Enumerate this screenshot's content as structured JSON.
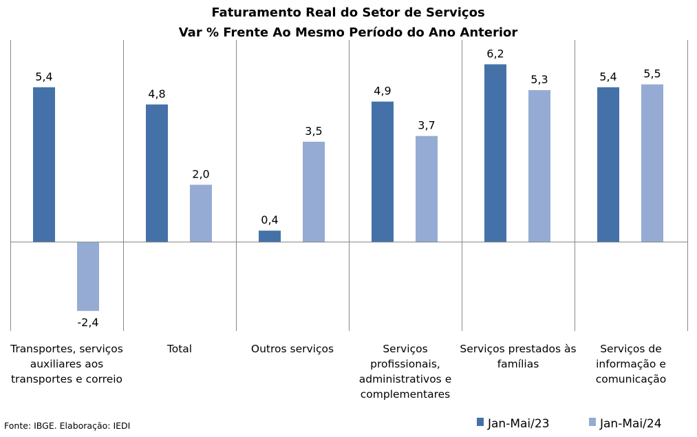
{
  "chart_data": {
    "type": "bar",
    "title": "Faturamento Real do Setor de Serviços",
    "subtitle": "Var % Frente Ao Mesmo Período do Ano Anterior",
    "categories": [
      "Transportes, serviços auxiliares aos transportes e correio",
      "Total",
      "Outros serviços",
      "Serviços profissionais, administrativos e complementares",
      "Serviços prestados às famílias",
      "Serviços de informação e comunicação"
    ],
    "category_lines": [
      [
        "Transportes, serviços",
        "auxiliares aos",
        "transportes e correio"
      ],
      [
        "Total"
      ],
      [
        "Outros serviços"
      ],
      [
        "Serviços",
        "profissionais,",
        "administrativos e",
        "complementares"
      ],
      [
        "Serviços prestados às",
        "famílias"
      ],
      [
        "Serviços de",
        "informação e",
        "comunicação"
      ]
    ],
    "series": [
      {
        "name": "Jan-Mai/23",
        "color": "#4472a8",
        "values": [
          5.4,
          4.8,
          0.4,
          4.9,
          6.2,
          5.4
        ],
        "labels": [
          "5,4",
          "4,8",
          "0,4",
          "4,9",
          "6,2",
          "5,4"
        ]
      },
      {
        "name": "Jan-Mai/24",
        "color": "#95abd4",
        "values": [
          -2.4,
          2.0,
          3.5,
          3.7,
          5.3,
          5.5
        ],
        "labels": [
          "-2,4",
          "2,0",
          "3,5",
          "3,7",
          "5,3",
          "5,5"
        ]
      }
    ],
    "ylim": [
      -3.1,
      7.05
    ],
    "xlabel": "",
    "ylabel": "",
    "legend": "bottom-right",
    "grid": false
  },
  "source_note": "Fonte: IBGE. Elaboração: IEDI"
}
